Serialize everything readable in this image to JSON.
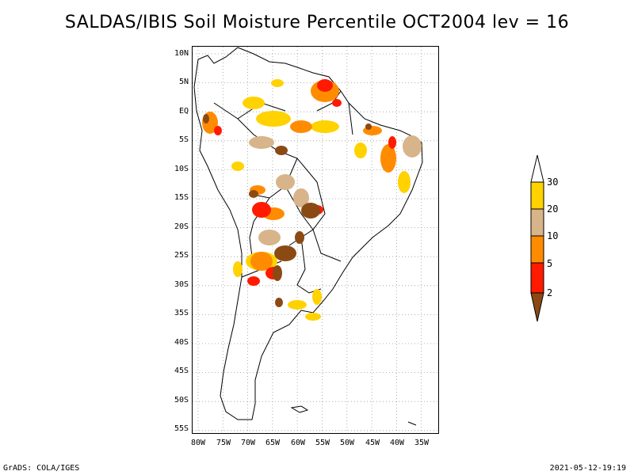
{
  "title": "SALDAS/IBIS Soil Moisture Percentile OCT2004 lev = 16",
  "lat_labels": [
    "10N",
    "5N",
    "EQ",
    "5S",
    "10S",
    "15S",
    "20S",
    "25S",
    "30S",
    "35S",
    "40S",
    "45S",
    "50S",
    "55S"
  ],
  "lon_labels": [
    "80W",
    "75W",
    "70W",
    "65W",
    "60W",
    "55W",
    "50W",
    "45W",
    "40W",
    "35W"
  ],
  "legend": {
    "labels": [
      "2",
      "5",
      "10",
      "20",
      "30"
    ],
    "colors": [
      "#8b4a14",
      "#ff1a00",
      "#ff8c00",
      "#d8b48a",
      "#ffd200",
      "#ffffff"
    ]
  },
  "footer_left": "GrADS: COLA/IGES",
  "footer_right": "2021-05-12-19:19"
}
